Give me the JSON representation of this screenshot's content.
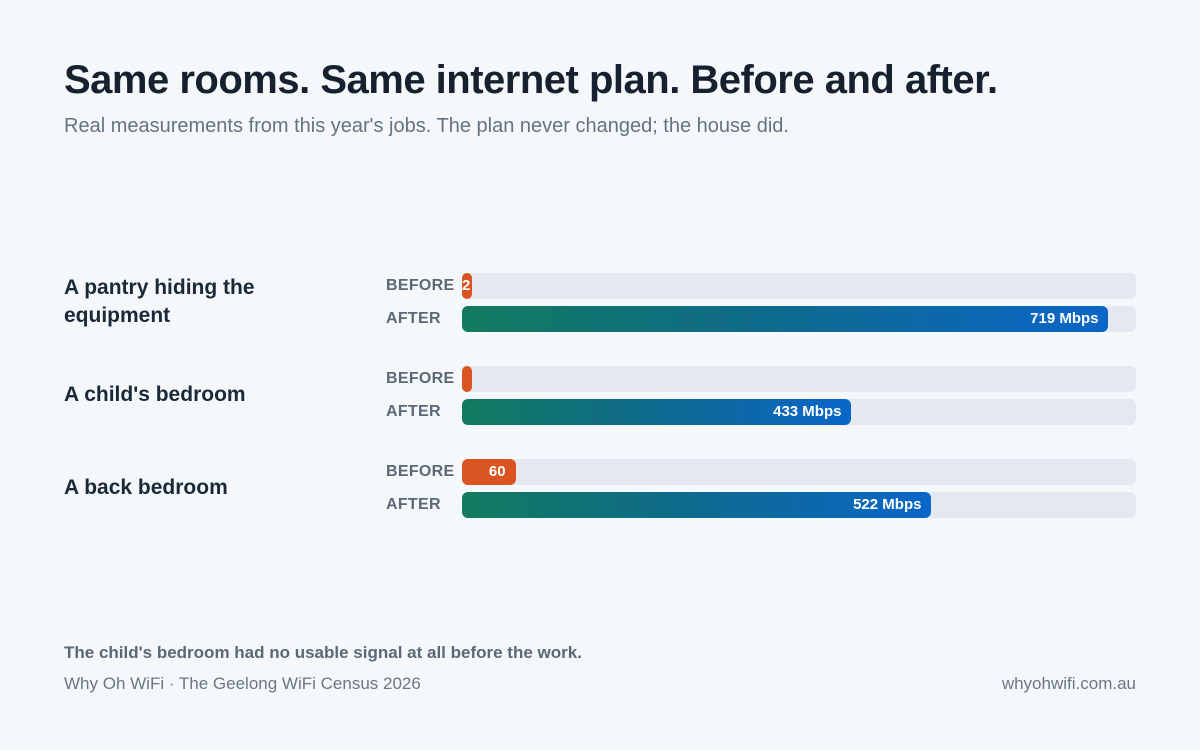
{
  "header": {
    "title": "Same rooms. Same internet plan. Before and after.",
    "subtitle": "Real measurements from this year's jobs. The plan never changed; the house did."
  },
  "chart_data": {
    "type": "bar",
    "orientation": "horizontal",
    "categories": [
      "A pantry hiding the equipment",
      "A child's bedroom",
      "A back bedroom"
    ],
    "series": [
      {
        "name": "BEFORE",
        "values": [
          2,
          0,
          60
        ],
        "labels": [
          "2",
          "",
          "60"
        ],
        "color": "#d95420"
      },
      {
        "name": "AFTER",
        "values": [
          719,
          433,
          522
        ],
        "labels": [
          "719 Mbps",
          "433 Mbps",
          "522 Mbps"
        ],
        "color": "#0a66c8"
      }
    ],
    "xlim": [
      0,
      750
    ],
    "unit": "Mbps",
    "grid": false,
    "legend": "none"
  },
  "footer": {
    "note": "The child's bedroom had no usable signal at all before the work.",
    "source": "Why Oh WiFi · The Geelong WiFi Census 2026",
    "site": "whyohwifi.com.au"
  }
}
